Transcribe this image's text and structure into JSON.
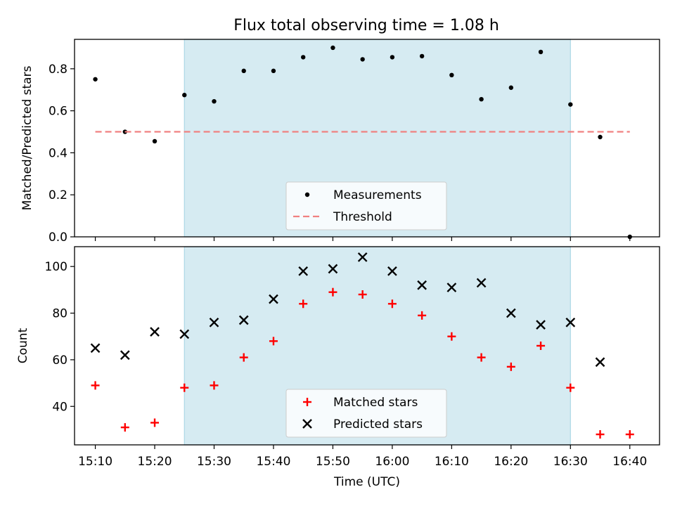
{
  "figure": {
    "title": "Flux total observing time = 1.08 h",
    "background": "#ffffff",
    "highlight_color": "#add8e6"
  },
  "chart_data": [
    {
      "type": "scatter",
      "title": "Flux total observing time = 1.08 h",
      "xlabel": "",
      "ylabel": "Matched/Predicted stars",
      "x_tick_labels": [],
      "xlim_minutes": [
        -3.5,
        95.0
      ],
      "ylim": [
        0.0,
        0.94
      ],
      "yticks": [
        0.0,
        0.2,
        0.4,
        0.6,
        0.8
      ],
      "ytick_labels": [
        "0.0",
        "0.2",
        "0.4",
        "0.6",
        "0.8"
      ],
      "grid": false,
      "legend_position": "lower center",
      "highlight_span": {
        "from": "15:25",
        "to": "16:30",
        "color": "#add8e6"
      },
      "series": [
        {
          "name": "Measurements",
          "marker": "dot",
          "color": "#000000",
          "x": [
            "15:10",
            "15:15",
            "15:20",
            "15:25",
            "15:30",
            "15:35",
            "15:40",
            "15:45",
            "15:50",
            "15:55",
            "16:00",
            "16:05",
            "16:10",
            "16:15",
            "16:20",
            "16:25",
            "16:30",
            "16:35",
            "16:40"
          ],
          "y": [
            0.75,
            0.5,
            0.455,
            0.675,
            0.645,
            0.79,
            0.79,
            0.855,
            0.9,
            0.845,
            0.855,
            0.86,
            0.77,
            0.655,
            0.71,
            0.88,
            0.63,
            0.475,
            0.0
          ]
        },
        {
          "name": "Threshold",
          "line": "dashed",
          "color": "#f08080",
          "x": [
            "15:10",
            "16:40"
          ],
          "y": [
            0.5,
            0.5
          ]
        }
      ]
    },
    {
      "type": "scatter",
      "title": "",
      "xlabel": "Time (UTC)",
      "ylabel": "Count",
      "x_tick_labels": [
        "15:10",
        "15:20",
        "15:30",
        "15:40",
        "15:50",
        "16:00",
        "16:10",
        "16:20",
        "16:30",
        "16:40"
      ],
      "xlim_minutes": [
        -3.5,
        95.0
      ],
      "ylim": [
        23.5,
        108.5
      ],
      "yticks": [
        40,
        60,
        80,
        100
      ],
      "ytick_labels": [
        "40",
        "60",
        "80",
        "100"
      ],
      "grid": false,
      "legend_position": "lower center",
      "highlight_span": {
        "from": "15:25",
        "to": "16:30",
        "color": "#add8e6"
      },
      "series": [
        {
          "name": "Matched stars",
          "marker": "plus",
          "color": "#ff0000",
          "x": [
            "15:10",
            "15:15",
            "15:20",
            "15:25",
            "15:30",
            "15:35",
            "15:40",
            "15:45",
            "15:50",
            "15:55",
            "16:00",
            "16:05",
            "16:10",
            "16:15",
            "16:20",
            "16:25",
            "16:30",
            "16:35",
            "16:40"
          ],
          "y": [
            49,
            31,
            33,
            48,
            49,
            61,
            68,
            84,
            89,
            88,
            84,
            79,
            70,
            61,
            57,
            66,
            48,
            28,
            28
          ]
        },
        {
          "name": "Predicted stars",
          "marker": "x",
          "color": "#000000",
          "x": [
            "15:10",
            "15:15",
            "15:20",
            "15:25",
            "15:30",
            "15:35",
            "15:40",
            "15:45",
            "15:50",
            "15:55",
            "16:00",
            "16:05",
            "16:10",
            "16:15",
            "16:20",
            "16:25",
            "16:30",
            "16:35"
          ],
          "y": [
            65,
            62,
            72,
            71,
            76,
            77,
            86,
            98,
            99,
            104,
            98,
            92,
            91,
            93,
            80,
            75,
            76,
            59
          ]
        }
      ]
    }
  ]
}
